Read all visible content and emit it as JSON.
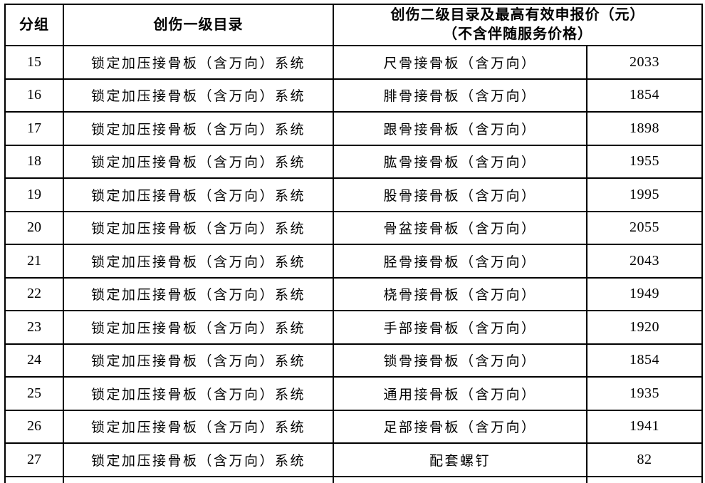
{
  "table": {
    "headers": {
      "group": "分组",
      "level1": "创伤一级目录",
      "level2_line1": "创伤二级目录及最高有效申报价（元）",
      "level2_line2": "（不含伴随服务价格）"
    },
    "rows": [
      {
        "group": "15",
        "level1": "锁定加压接骨板（含万向）系统",
        "level2": "尺骨接骨板（含万向）",
        "price": "2033"
      },
      {
        "group": "16",
        "level1": "锁定加压接骨板（含万向）系统",
        "level2": "腓骨接骨板（含万向）",
        "price": "1854"
      },
      {
        "group": "17",
        "level1": "锁定加压接骨板（含万向）系统",
        "level2": "跟骨接骨板（含万向）",
        "price": "1898"
      },
      {
        "group": "18",
        "level1": "锁定加压接骨板（含万向）系统",
        "level2": "肱骨接骨板（含万向）",
        "price": "1955"
      },
      {
        "group": "19",
        "level1": "锁定加压接骨板（含万向）系统",
        "level2": "股骨接骨板（含万向）",
        "price": "1995"
      },
      {
        "group": "20",
        "level1": "锁定加压接骨板（含万向）系统",
        "level2": "骨盆接骨板（含万向）",
        "price": "2055"
      },
      {
        "group": "21",
        "level1": "锁定加压接骨板（含万向）系统",
        "level2": "胫骨接骨板（含万向）",
        "price": "2043"
      },
      {
        "group": "22",
        "level1": "锁定加压接骨板（含万向）系统",
        "level2": "桡骨接骨板（含万向）",
        "price": "1949"
      },
      {
        "group": "23",
        "level1": "锁定加压接骨板（含万向）系统",
        "level2": "手部接骨板（含万向）",
        "price": "1920"
      },
      {
        "group": "24",
        "level1": "锁定加压接骨板（含万向）系统",
        "level2": "锁骨接骨板（含万向）",
        "price": "1854"
      },
      {
        "group": "25",
        "level1": "锁定加压接骨板（含万向）系统",
        "level2": "通用接骨板（含万向）",
        "price": "1935"
      },
      {
        "group": "26",
        "level1": "锁定加压接骨板（含万向）系统",
        "level2": "足部接骨板（含万向）",
        "price": "1941"
      },
      {
        "group": "27",
        "level1": "锁定加压接骨板（含万向）系统",
        "level2": "配套螺钉",
        "price": "82"
      }
    ],
    "colors": {
      "border": "#000000",
      "text": "#000000",
      "background": "#ffffff"
    }
  }
}
